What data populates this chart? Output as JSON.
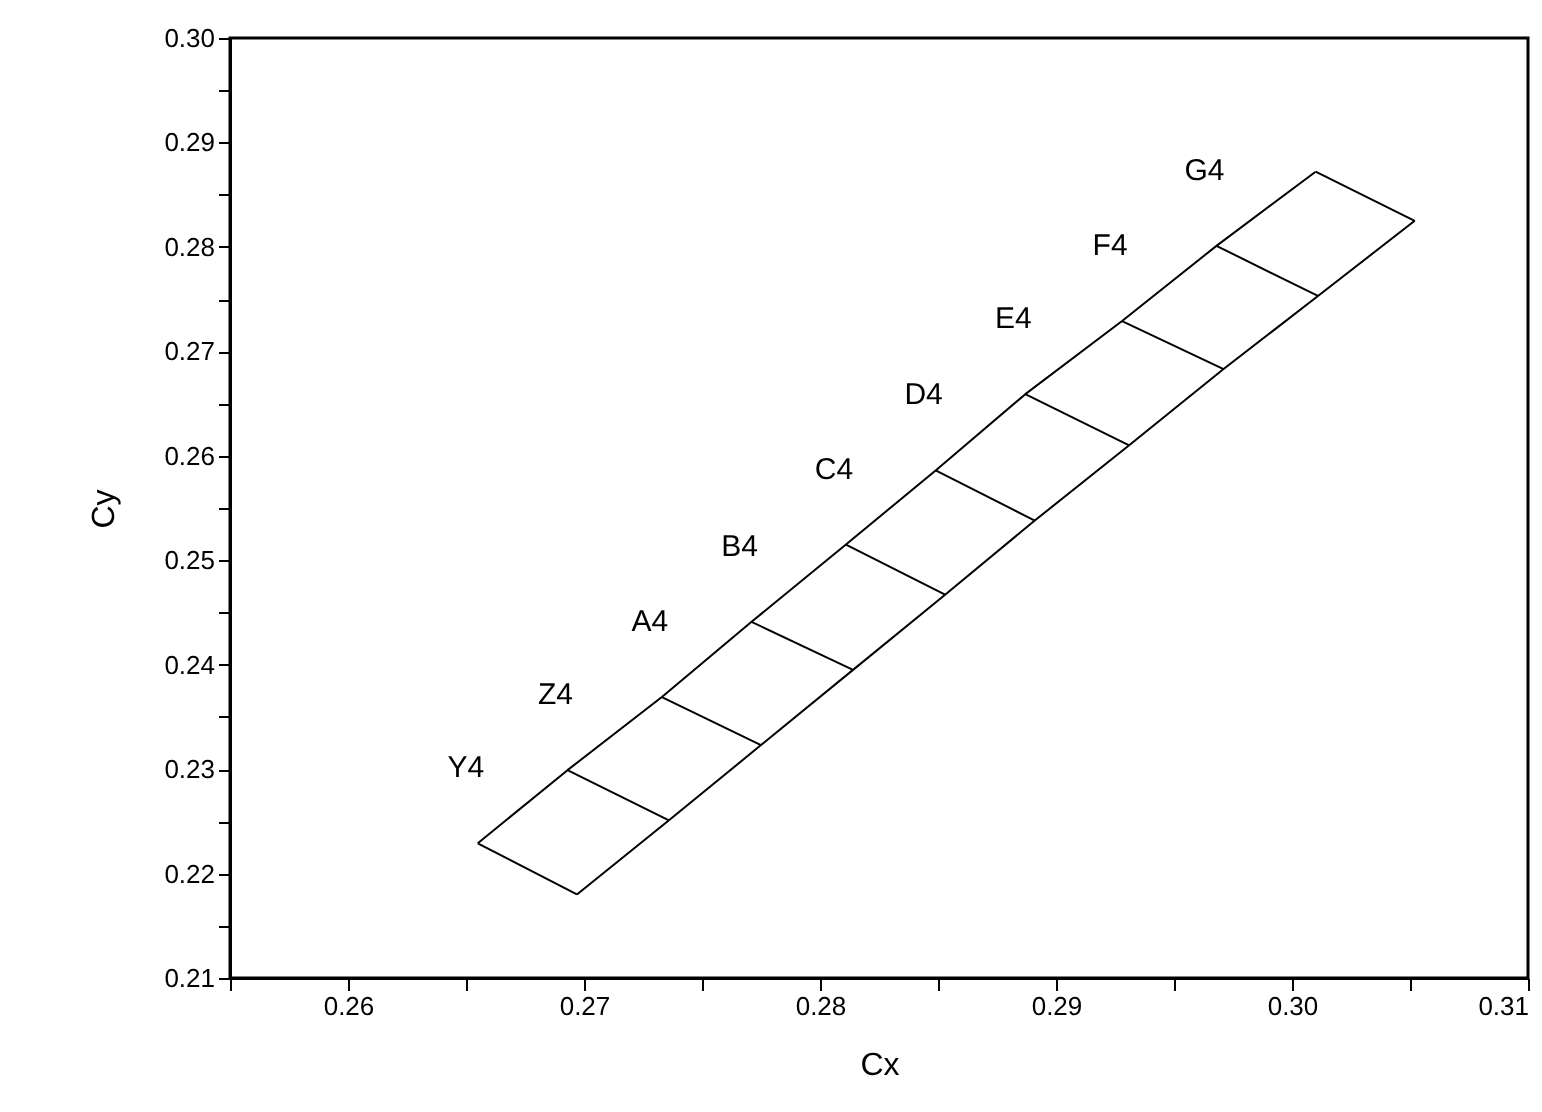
{
  "chart_data": {
    "type": "line",
    "xlabel": "Cx",
    "ylabel": "Cy",
    "xlim": [
      0.255,
      0.31
    ],
    "ylim": [
      0.21,
      0.3
    ],
    "xticks": [
      {
        "value": 0.255,
        "label": null
      },
      0.26,
      {
        "value": 0.265,
        "label": null
      },
      0.27,
      {
        "value": 0.275,
        "label": null
      },
      0.28,
      {
        "value": 0.285,
        "label": null
      },
      0.29,
      {
        "value": 0.295,
        "label": null
      },
      {
        "value": 0.3,
        "label": "0.30"
      },
      {
        "value": 0.305,
        "label": null
      },
      0.31
    ],
    "yticks": [
      0.21,
      {
        "value": 0.215,
        "label": null
      },
      0.22,
      {
        "value": 0.225,
        "label": null
      },
      0.23,
      {
        "value": 0.235,
        "label": null
      },
      0.24,
      {
        "value": 0.245,
        "label": null
      },
      0.25,
      {
        "value": 0.255,
        "label": null
      },
      0.26,
      {
        "value": 0.265,
        "label": null
      },
      0.27,
      {
        "value": 0.275,
        "label": null
      },
      0.28,
      {
        "value": 0.285,
        "label": null
      },
      0.29,
      {
        "value": 0.295,
        "label": null
      },
      {
        "value": 0.3,
        "label": "0.30"
      }
    ],
    "marker": "none",
    "series": [
      {
        "color": "#000000",
        "x": [
          0.2655,
          0.2693,
          0.2733,
          0.2771,
          0.2811,
          0.2849,
          0.2887,
          0.2928,
          0.2968,
          0.301
        ],
        "values": [
          0.2229,
          0.2299,
          0.2369,
          0.2441,
          0.2515,
          0.2586,
          0.2659,
          0.2729,
          0.2801,
          0.2872
        ]
      },
      {
        "color": "#000000",
        "x": [
          0.2697,
          0.2736,
          0.2775,
          0.2814,
          0.2853,
          0.2891,
          0.2931,
          0.2971,
          0.3011,
          0.3052
        ],
        "values": [
          0.218,
          0.2251,
          0.2323,
          0.2395,
          0.2467,
          0.2538,
          0.261,
          0.2683,
          0.2753,
          0.2825
        ]
      },
      {
        "color": "#000000",
        "x": [
          0.2655,
          0.2697
        ],
        "values": [
          0.2229,
          0.218
        ]
      },
      {
        "color": "#000000",
        "x": [
          0.2693,
          0.2736
        ],
        "values": [
          0.2299,
          0.2251
        ]
      },
      {
        "color": "#000000",
        "x": [
          0.2733,
          0.2775
        ],
        "values": [
          0.2369,
          0.2323
        ]
      },
      {
        "color": "#000000",
        "x": [
          0.2771,
          0.2814
        ],
        "values": [
          0.2441,
          0.2395
        ]
      },
      {
        "color": "#000000",
        "x": [
          0.2811,
          0.2853
        ],
        "values": [
          0.2515,
          0.2467
        ]
      },
      {
        "color": "#000000",
        "x": [
          0.2849,
          0.2891
        ],
        "values": [
          0.2586,
          0.2538
        ]
      },
      {
        "color": "#000000",
        "x": [
          0.2887,
          0.2931
        ],
        "values": [
          0.2659,
          0.261
        ]
      },
      {
        "color": "#000000",
        "x": [
          0.2928,
          0.2971
        ],
        "values": [
          0.2729,
          0.2683
        ]
      },
      {
        "color": "#000000",
        "x": [
          0.2968,
          0.3011
        ],
        "values": [
          0.2801,
          0.2753
        ]
      },
      {
        "color": "#000000",
        "x": [
          0.301,
          0.3052
        ],
        "values": [
          0.2872,
          0.2825
        ]
      }
    ],
    "annotations": [
      {
        "text": "Y4",
        "x": 0.2655,
        "y": 0.2229
      },
      {
        "text": "Z4",
        "x": 0.2693,
        "y": 0.2299
      },
      {
        "text": "A4",
        "x": 0.2733,
        "y": 0.2369
      },
      {
        "text": "B4",
        "x": 0.2771,
        "y": 0.2441
      },
      {
        "text": "C4",
        "x": 0.2811,
        "y": 0.2515
      },
      {
        "text": "D4",
        "x": 0.2849,
        "y": 0.2586
      },
      {
        "text": "E4",
        "x": 0.2887,
        "y": 0.2659
      },
      {
        "text": "F4",
        "x": 0.2928,
        "y": 0.2729
      },
      {
        "text": "G4",
        "x": 0.2968,
        "y": 0.2801
      }
    ]
  }
}
